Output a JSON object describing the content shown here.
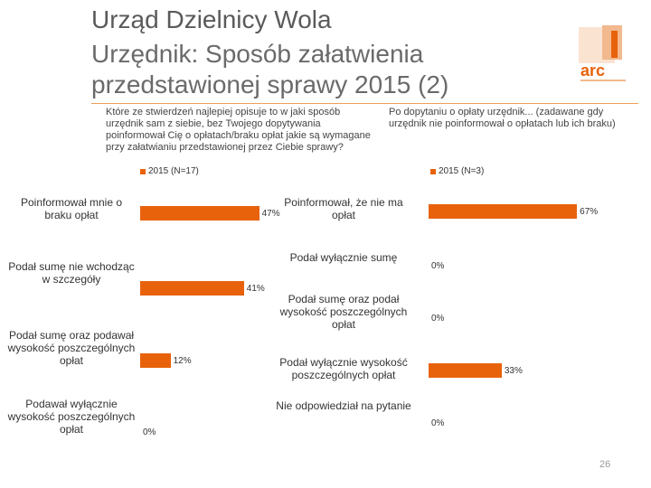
{
  "header": {
    "title_line1": "Urząd Dzielnicy Wola",
    "title_line2": "Urzędnik: Sposób załatwienia",
    "title_line3": "przedstawionej sprawy 2015 (2)",
    "logo_text": "arc"
  },
  "questions": {
    "left": "Które ze stwierdzeń najlepiej opisuje to w jaki sposób urzędnik sam z siebie, bez Twojego dopytywania poinformował Cię o opłatach/braku opłat jakie są wymagane przy załatwianiu  przedstawionej przez Ciebie sprawy?",
    "right": "Po dopytaniu o opłaty urzędnik... (zadawane gdy urzędnik nie poinformował o opłatach lub ich braku)"
  },
  "page_number": "26",
  "colors": {
    "bar": "#e8620b",
    "title": "#5a5a5a",
    "divider": "#f0a05a"
  },
  "chart_data": [
    {
      "type": "bar",
      "orientation": "horizontal",
      "legend": "2015 (N=17)",
      "xlim": [
        0,
        100
      ],
      "categories": [
        "Poinformował mnie o braku opłat",
        "Podał sumę nie wchodząc w szczegóły",
        "Podał sumę oraz podawał wysokość poszczególnych opłat",
        "Podawał wyłącznie wysokość poszczególnych opłat"
      ],
      "values": [
        47,
        41,
        12,
        0
      ],
      "value_labels": [
        "47%",
        "41%",
        "12%",
        "0%"
      ]
    },
    {
      "type": "bar",
      "orientation": "horizontal",
      "legend": "2015 (N=3)",
      "xlim": [
        0,
        100
      ],
      "categories": [
        "Poinformował, że nie ma opłat",
        "Podał wyłącznie sumę",
        "Podał sumę oraz podał wysokość poszczególnych opłat",
        "Podał wyłącznie wysokość poszczególnych opłat",
        "Nie odpowiedział na pytanie"
      ],
      "values": [
        67,
        0,
        0,
        33,
        0
      ],
      "value_labels": [
        "67%",
        "0%",
        "0%",
        "33%",
        "0%"
      ]
    }
  ]
}
